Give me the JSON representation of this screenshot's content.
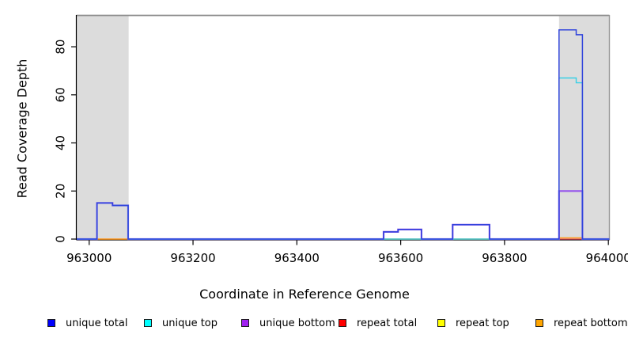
{
  "figure": {
    "x_axis_label": "Coordinate in Reference Genome",
    "y_axis_label": "Read Coverage Depth"
  },
  "chart_data": {
    "type": "line",
    "subtype": "step-coverage",
    "title": "",
    "xlabel": "Coordinate in Reference Genome",
    "ylabel": "Read Coverage Depth",
    "xlim": [
      962976,
      964002
    ],
    "ylim": [
      0,
      92.7
    ],
    "x_ticks": [
      963000,
      963200,
      963400,
      963600,
      963800,
      964000
    ],
    "y_ticks": [
      0,
      20,
      40,
      60,
      80
    ],
    "grid": false,
    "legend_position": "bottom",
    "shade_color": "#dcdcdc",
    "shaded_regions": [
      {
        "x1": 962976,
        "x2": 963076
      },
      {
        "x1": 963905,
        "x2": 964002
      }
    ],
    "series": [
      {
        "name": "unique total",
        "legend_color": "#0000FF",
        "line_color": "#2F43DC",
        "line_width": 1.5,
        "steps": [
          [
            962976,
            0
          ],
          [
            963015,
            15
          ],
          [
            963045,
            14
          ],
          [
            963075,
            0
          ],
          [
            963567,
            3
          ],
          [
            963595,
            4
          ],
          [
            963640,
            0
          ],
          [
            963700,
            6
          ],
          [
            963771,
            0
          ],
          [
            963905,
            87
          ],
          [
            963938,
            85
          ],
          [
            963950,
            0
          ]
        ]
      },
      {
        "name": "unique top",
        "legend_color": "#00FFFF",
        "line_color": "#38D0E6",
        "line_width": 1.4,
        "steps": [
          [
            962976,
            0
          ],
          [
            963015,
            15
          ],
          [
            963045,
            14
          ],
          [
            963075,
            0
          ],
          [
            963905,
            67
          ],
          [
            963938,
            65
          ],
          [
            963950,
            0
          ]
        ]
      },
      {
        "name": "unique bottom",
        "legend_color": "#A020F0",
        "line_color": "#9554EC",
        "line_width": 2.2,
        "steps": [
          [
            962976,
            0
          ],
          [
            963015,
            15
          ],
          [
            963045,
            14
          ],
          [
            963075,
            0
          ],
          [
            963567,
            3
          ],
          [
            963595,
            4
          ],
          [
            963640,
            0
          ],
          [
            963700,
            6
          ],
          [
            963771,
            0
          ],
          [
            963905,
            20
          ],
          [
            963950,
            0
          ]
        ]
      },
      {
        "name": "repeat total",
        "legend_color": "#FF0000",
        "line_color": "#EE5566",
        "line_width": 1.2,
        "steps": [
          [
            962976,
            0
          ]
        ]
      },
      {
        "name": "repeat top",
        "legend_color": "#FFFF00",
        "line_color": "#E8E800",
        "line_width": 1.0,
        "steps": [
          [
            962976,
            0
          ]
        ]
      },
      {
        "name": "repeat bottom",
        "legend_color": "#FFA500",
        "line_color": "#FF9E1B",
        "line_width": 1.6,
        "steps": [
          [
            962976,
            0
          ],
          [
            963905,
            0.5
          ],
          [
            963950,
            0
          ]
        ]
      }
    ],
    "draw_order": [
      "repeat top",
      "repeat total",
      "repeat bottom",
      "unique bottom",
      "unique top",
      "unique total"
    ]
  },
  "legend": {
    "items": [
      {
        "label": "unique total",
        "color": "#0000FF",
        "x": 60
      },
      {
        "label": "unique top",
        "color": "#00FFFF",
        "x": 182
      },
      {
        "label": "unique bottom",
        "color": "#A020F0",
        "x": 305
      },
      {
        "label": "repeat total",
        "color": "#FF0000",
        "x": 428
      },
      {
        "label": "repeat top",
        "color": "#FFFF00",
        "x": 553
      },
      {
        "label": "repeat bottom",
        "color": "#FFA500",
        "x": 677
      }
    ]
  }
}
